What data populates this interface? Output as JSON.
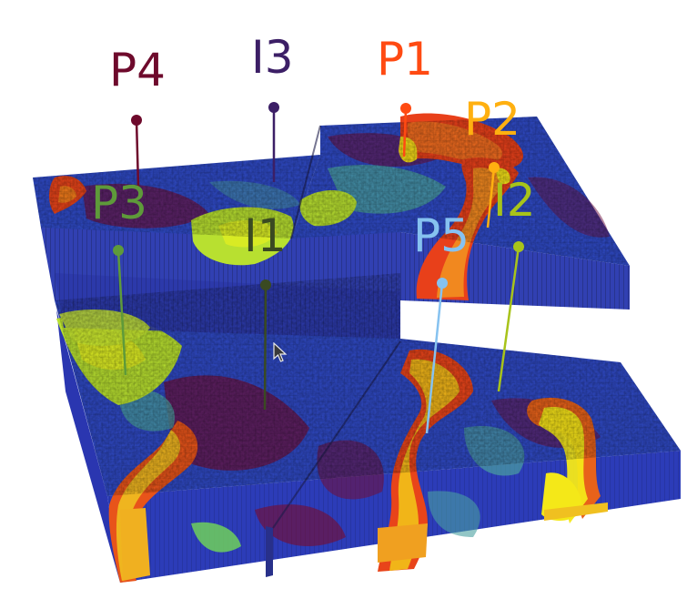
{
  "colors": {
    "deep_blue": "#2430b8",
    "blue": "#3a5bd0",
    "dark_red": "#7a0a2a",
    "teal": "#4aa0a0",
    "yellow_green": "#c8e830",
    "yellow": "#f2e61a",
    "orange": "#f07a1a",
    "red": "#e0301a"
  },
  "wells": [
    {
      "id": "P4",
      "label": "P4",
      "color": "#6e0a2c"
    },
    {
      "id": "I3",
      "label": "I3",
      "color": "#3c1f66"
    },
    {
      "id": "P1",
      "label": "P1",
      "color": "#ff4a12"
    },
    {
      "id": "P2",
      "label": "P2",
      "color": "#ffb010"
    },
    {
      "id": "P3",
      "label": "P3",
      "color": "#5e9a3a"
    },
    {
      "id": "I1",
      "label": "I1",
      "color": "#3a4a22"
    },
    {
      "id": "P5",
      "label": "P5",
      "color": "#86c2f0"
    },
    {
      "id": "I2",
      "label": "I2",
      "color": "#a8c31a"
    }
  ],
  "cursor": {
    "icon": "arrow-pointer-icon"
  }
}
